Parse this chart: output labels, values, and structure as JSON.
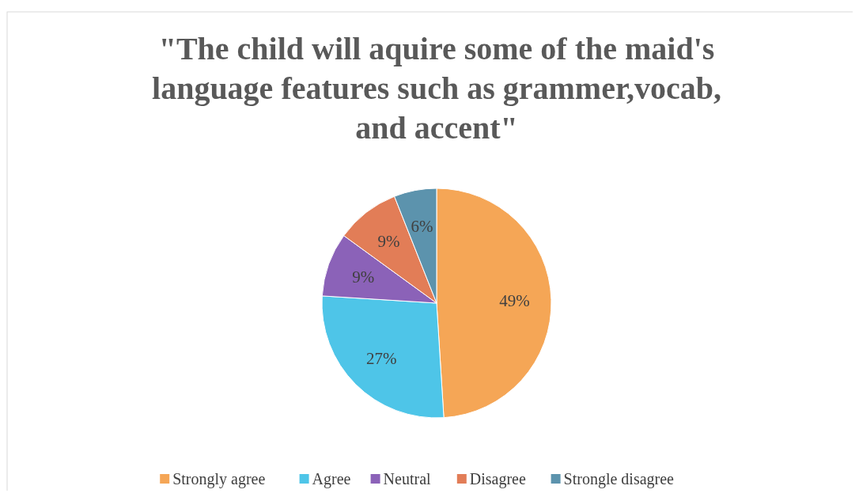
{
  "chart_data": {
    "type": "pie",
    "title": "\"The child will aquire some of the maid's language features such as grammer,vocab, and accent\"",
    "categories": [
      "Strongly agree",
      "Agree",
      "Neutral",
      "Disagree",
      "Strongle disagree"
    ],
    "values": [
      49,
      27,
      9,
      9,
      6
    ],
    "colors": [
      "#f5a656",
      "#4ec5e8",
      "#8b62b8",
      "#e27d57",
      "#5c93ad"
    ],
    "value_labels": [
      "49%",
      "27%",
      "9%",
      "9%",
      "6%"
    ],
    "legend": "bottom"
  }
}
